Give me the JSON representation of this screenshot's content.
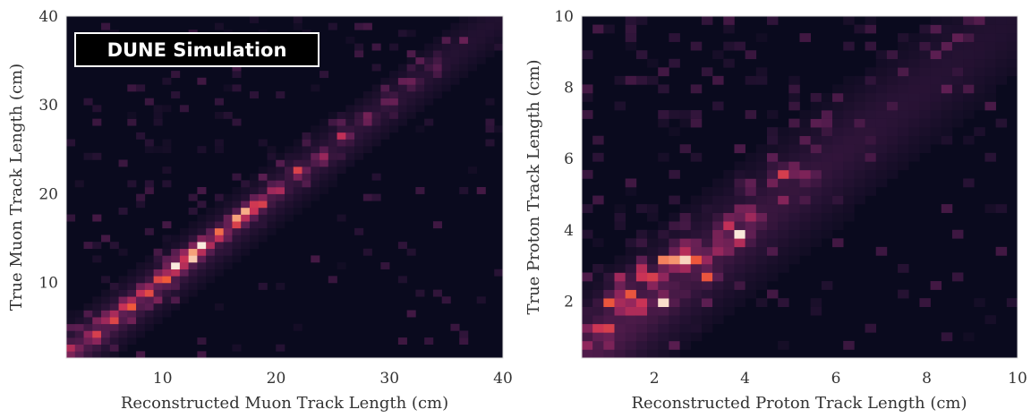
{
  "colors": {
    "background": "#0a0a1e",
    "ramp": [
      "#0b0b1f",
      "#2a1336",
      "#5b1e51",
      "#91265c",
      "#c93257",
      "#ef5a3a",
      "#f7a981",
      "#faebdd"
    ]
  },
  "badge": {
    "text": "DUNE Simulation"
  },
  "chart_data": [
    {
      "type": "heatmap",
      "xlabel": "Reconstructed Muon Track Length (cm)",
      "ylabel": "True Muon Track Length (cm)",
      "xlim": [
        1.5,
        40
      ],
      "ylim": [
        1.5,
        40
      ],
      "xticks": [
        10,
        20,
        30,
        40
      ],
      "yticks": [
        10,
        20,
        30,
        40
      ],
      "bins": 50,
      "color_scale": "rocket",
      "description_of_density": "counts concentrated along the diagonal y = x; brightest near 11-14 cm",
      "hotspots": [
        {
          "x": 2,
          "y": 2.5,
          "intensity": 0.3
        },
        {
          "x": 4,
          "y": 4,
          "intensity": 0.45
        },
        {
          "x": 5.5,
          "y": 6,
          "intensity": 0.55
        },
        {
          "x": 7,
          "y": 7.5,
          "intensity": 0.65
        },
        {
          "x": 8.5,
          "y": 9,
          "intensity": 0.6
        },
        {
          "x": 10,
          "y": 10.5,
          "intensity": 0.7
        },
        {
          "x": 11.2,
          "y": 11.8,
          "intensity": 0.9
        },
        {
          "x": 12.5,
          "y": 13,
          "intensity": 1.0
        },
        {
          "x": 13.5,
          "y": 14.2,
          "intensity": 0.95
        },
        {
          "x": 15,
          "y": 15.5,
          "intensity": 0.65
        },
        {
          "x": 16.5,
          "y": 17,
          "intensity": 0.75
        },
        {
          "x": 17.5,
          "y": 18,
          "intensity": 0.7
        },
        {
          "x": 18.5,
          "y": 19,
          "intensity": 0.6
        },
        {
          "x": 20,
          "y": 20.5,
          "intensity": 0.45
        },
        {
          "x": 22,
          "y": 22.5,
          "intensity": 0.45
        },
        {
          "x": 24,
          "y": 24,
          "intensity": 0.35
        },
        {
          "x": 26,
          "y": 26.5,
          "intensity": 0.3
        },
        {
          "x": 28,
          "y": 28.5,
          "intensity": 0.28
        },
        {
          "x": 30,
          "y": 30.5,
          "intensity": 0.25
        },
        {
          "x": 32,
          "y": 32.5,
          "intensity": 0.22
        },
        {
          "x": 34,
          "y": 34.5,
          "intensity": 0.2
        }
      ]
    },
    {
      "type": "heatmap",
      "xlabel": "Reconstructed Proton Track Length (cm)",
      "ylabel": "True Proton Track Length (cm)",
      "xlim": [
        0.4,
        10
      ],
      "ylim": [
        0.4,
        10
      ],
      "xticks": [
        2,
        4,
        6,
        8,
        10
      ],
      "yticks": [
        2,
        4,
        6,
        8,
        10
      ],
      "bins": 40,
      "color_scale": "rocket",
      "description_of_density": "broad band along y = x, densest around 1-3.5 cm",
      "hotspots": [
        {
          "x": 0.9,
          "y": 1.2,
          "intensity": 0.6
        },
        {
          "x": 1.0,
          "y": 2.0,
          "intensity": 0.55
        },
        {
          "x": 1.2,
          "y": 2.6,
          "intensity": 0.5
        },
        {
          "x": 1.4,
          "y": 2.2,
          "intensity": 0.65
        },
        {
          "x": 1.6,
          "y": 1.8,
          "intensity": 0.6
        },
        {
          "x": 1.7,
          "y": 2.8,
          "intensity": 0.7
        },
        {
          "x": 2.0,
          "y": 2.6,
          "intensity": 0.55
        },
        {
          "x": 2.2,
          "y": 2.0,
          "intensity": 0.6
        },
        {
          "x": 2.3,
          "y": 3.1,
          "intensity": 0.75
        },
        {
          "x": 2.6,
          "y": 3.1,
          "intensity": 1.0
        },
        {
          "x": 2.6,
          "y": 3.5,
          "intensity": 0.6
        },
        {
          "x": 3.0,
          "y": 3.2,
          "intensity": 0.65
        },
        {
          "x": 3.2,
          "y": 2.7,
          "intensity": 0.55
        },
        {
          "x": 3.5,
          "y": 3.5,
          "intensity": 0.5
        },
        {
          "x": 3.9,
          "y": 3.8,
          "intensity": 0.85
        },
        {
          "x": 3.6,
          "y": 4.2,
          "intensity": 0.5
        },
        {
          "x": 4.2,
          "y": 4.3,
          "intensity": 0.4
        },
        {
          "x": 4.8,
          "y": 5.6,
          "intensity": 0.45
        },
        {
          "x": 5.4,
          "y": 5.5,
          "intensity": 0.3
        }
      ]
    }
  ]
}
